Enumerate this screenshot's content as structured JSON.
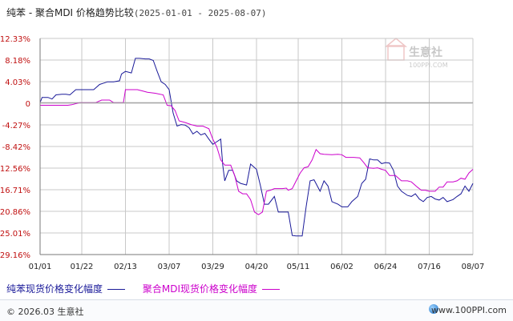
{
  "title": {
    "main": "纯苯 - 聚合MDI 价格趋势比较",
    "range": "(2025-01-01 - 2025-08-07)"
  },
  "watermark": {
    "logo_text": "生意社",
    "url_text": "100PPI.COM"
  },
  "footer": {
    "copyright": "© 2026.03 生意社",
    "site": "www.100PPI.com"
  },
  "colors": {
    "series1": "#1a1a99",
    "series2": "#cc00cc",
    "grid": "#c8c8c8",
    "axis": "#7a7a7a"
  },
  "chart_data": {
    "type": "line",
    "ylim": [
      -29.16,
      12.33
    ],
    "y_ticks": [
      "12.33%",
      "8.18%",
      "4.03%",
      "0",
      "-4.27%",
      "-8.42%",
      "-12.56%",
      "-16.71%",
      "-20.86%",
      "-25.01%",
      "-29.16%"
    ],
    "x_ticks": [
      "01/01",
      "01/22",
      "02/13",
      "03/07",
      "03/29",
      "04/20",
      "05/11",
      "06/02",
      "06/24",
      "07/16",
      "08/07"
    ],
    "x_tick_days": [
      0,
      21,
      43,
      65,
      87,
      109,
      130,
      152,
      174,
      196,
      218
    ],
    "grid": true,
    "series": [
      {
        "name": "纯苯现货价格变化幅度",
        "points": [
          [
            0,
            0
          ],
          [
            1,
            1
          ],
          [
            4,
            1
          ],
          [
            6,
            0.7
          ],
          [
            8,
            1.5
          ],
          [
            11,
            1.6
          ],
          [
            13,
            1.6
          ],
          [
            15,
            1.5
          ],
          [
            18,
            2.5
          ],
          [
            21,
            2.5
          ],
          [
            24,
            2.5
          ],
          [
            27,
            2.5
          ],
          [
            30,
            3.5
          ],
          [
            34,
            4
          ],
          [
            37,
            4
          ],
          [
            40,
            4.2
          ],
          [
            41,
            5.5
          ],
          [
            43,
            6
          ],
          [
            46,
            5.7
          ],
          [
            48,
            8.5
          ],
          [
            50,
            8.5
          ],
          [
            53,
            8.4
          ],
          [
            55,
            8.4
          ],
          [
            57,
            8.1
          ],
          [
            59,
            6
          ],
          [
            61,
            4
          ],
          [
            63,
            3.5
          ],
          [
            65,
            2.5
          ],
          [
            67,
            -2
          ],
          [
            69,
            -4.5
          ],
          [
            71,
            -4.2
          ],
          [
            73,
            -4.3
          ],
          [
            75,
            -4.8
          ],
          [
            77,
            -6
          ],
          [
            79,
            -5.5
          ],
          [
            81,
            -6.2
          ],
          [
            83,
            -5.9
          ],
          [
            85,
            -7
          ],
          [
            87,
            -8
          ],
          [
            89,
            -7.5
          ],
          [
            91,
            -7
          ],
          [
            92,
            -12
          ],
          [
            93,
            -15
          ],
          [
            95,
            -13
          ],
          [
            97,
            -13
          ],
          [
            99,
            -15
          ],
          [
            101,
            -15.5
          ],
          [
            104,
            -15.8
          ],
          [
            106,
            -11.8
          ],
          [
            109,
            -12.8
          ],
          [
            111,
            -16
          ],
          [
            113,
            -19.5
          ],
          [
            115,
            -19.5
          ],
          [
            118,
            -18
          ],
          [
            120,
            -21
          ],
          [
            122,
            -21
          ],
          [
            125,
            -21
          ],
          [
            127,
            -25.5
          ],
          [
            129,
            -25.6
          ],
          [
            132,
            -25.6
          ],
          [
            134,
            -20
          ],
          [
            136,
            -15
          ],
          [
            138,
            -14.8
          ],
          [
            141,
            -17
          ],
          [
            143,
            -15
          ],
          [
            145,
            -16
          ],
          [
            147,
            -19
          ],
          [
            150,
            -19.5
          ],
          [
            152,
            -20
          ],
          [
            155,
            -20
          ],
          [
            157,
            -19
          ],
          [
            160,
            -18
          ],
          [
            162,
            -15.5
          ],
          [
            164,
            -14.7
          ],
          [
            166,
            -10.8
          ],
          [
            168,
            -11
          ],
          [
            170,
            -11
          ],
          [
            172,
            -11.7
          ],
          [
            174,
            -11.5
          ],
          [
            176,
            -11.6
          ],
          [
            178,
            -13
          ],
          [
            180,
            -16
          ],
          [
            182,
            -17
          ],
          [
            185,
            -17.8
          ],
          [
            187,
            -18
          ],
          [
            189,
            -17.5
          ],
          [
            191,
            -18.5
          ],
          [
            193,
            -19
          ],
          [
            195,
            -18.2
          ],
          [
            197,
            -18
          ],
          [
            199,
            -18.5
          ],
          [
            201,
            -18.7
          ],
          [
            203,
            -18.2
          ],
          [
            205,
            -19
          ],
          [
            208,
            -18.6
          ],
          [
            210,
            -18
          ],
          [
            212,
            -17.5
          ],
          [
            214,
            -16
          ],
          [
            216,
            -17
          ],
          [
            218,
            -15.5
          ]
        ]
      },
      {
        "name": "聚合MDI现货价格变化幅度",
        "points": [
          [
            0,
            -0.5
          ],
          [
            14,
            -0.5
          ],
          [
            16,
            -0.4
          ],
          [
            20,
            0
          ],
          [
            28,
            0
          ],
          [
            31,
            0.5
          ],
          [
            35,
            0.5
          ],
          [
            37,
            0
          ],
          [
            42,
            0
          ],
          [
            43,
            2.5
          ],
          [
            49,
            2.5
          ],
          [
            52,
            2.2
          ],
          [
            54,
            2
          ],
          [
            58,
            1.8
          ],
          [
            62,
            1.5
          ],
          [
            64,
            -0.5
          ],
          [
            66,
            -0.6
          ],
          [
            68,
            -1.5
          ],
          [
            70,
            -3.5
          ],
          [
            73,
            -3.8
          ],
          [
            76,
            -4.2
          ],
          [
            79,
            -4.5
          ],
          [
            82,
            -4.5
          ],
          [
            85,
            -5
          ],
          [
            87,
            -7
          ],
          [
            89,
            -8.5
          ],
          [
            91,
            -11
          ],
          [
            93,
            -12
          ],
          [
            96,
            -12
          ],
          [
            98,
            -14
          ],
          [
            100,
            -17
          ],
          [
            102,
            -17.5
          ],
          [
            104,
            -17.5
          ],
          [
            106,
            -18.6
          ],
          [
            108,
            -21
          ],
          [
            110,
            -21.5
          ],
          [
            112,
            -21
          ],
          [
            114,
            -17
          ],
          [
            116,
            -16.8
          ],
          [
            118,
            -16.5
          ],
          [
            122,
            -16.5
          ],
          [
            124,
            -16.4
          ],
          [
            125,
            -16.8
          ],
          [
            127,
            -16.5
          ],
          [
            129,
            -15
          ],
          [
            131,
            -13.5
          ],
          [
            133,
            -12.5
          ],
          [
            135,
            -12.3
          ],
          [
            137,
            -11
          ],
          [
            139,
            -9
          ],
          [
            141,
            -9.8
          ],
          [
            143,
            -9.9
          ],
          [
            147,
            -10
          ],
          [
            150,
            -9.9
          ],
          [
            152,
            -10
          ],
          [
            154,
            -10.5
          ],
          [
            158,
            -10.5
          ],
          [
            161,
            -10.6
          ],
          [
            163,
            -11.5
          ],
          [
            165,
            -12.5
          ],
          [
            168,
            -12.6
          ],
          [
            170,
            -12.5
          ],
          [
            172,
            -12.8
          ],
          [
            174,
            -13
          ],
          [
            176,
            -14
          ],
          [
            179,
            -14
          ],
          [
            182,
            -15
          ],
          [
            185,
            -15
          ],
          [
            187,
            -15.2
          ],
          [
            190,
            -16.2
          ],
          [
            192,
            -16.8
          ],
          [
            194,
            -16.8
          ],
          [
            196,
            -17
          ],
          [
            199,
            -17
          ],
          [
            201,
            -16.2
          ],
          [
            203,
            -16.2
          ],
          [
            205,
            -15.2
          ],
          [
            208,
            -15.2
          ],
          [
            210,
            -15
          ],
          [
            212,
            -14.5
          ],
          [
            214,
            -14.7
          ],
          [
            216,
            -13.5
          ],
          [
            218,
            -12.8
          ]
        ]
      }
    ]
  }
}
